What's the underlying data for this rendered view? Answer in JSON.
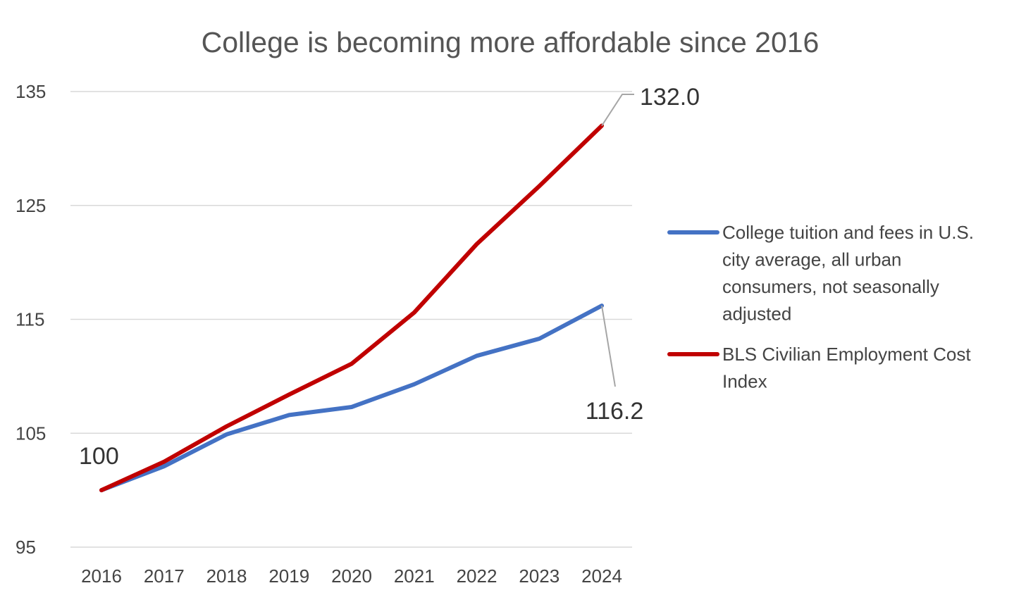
{
  "chart_data": {
    "type": "line",
    "title": "College is becoming more affordable since 2016",
    "xlabel": "",
    "ylabel": "",
    "categories": [
      "2016",
      "2017",
      "2018",
      "2019",
      "2020",
      "2021",
      "2022",
      "2023",
      "2024"
    ],
    "ylim": [
      95,
      135
    ],
    "yticks": [
      95,
      105,
      115,
      125,
      135
    ],
    "grid": true,
    "legend_position": "right",
    "series": [
      {
        "name": "College tuition and fees in U.S. city average, all urban consumers, not seasonally adjusted",
        "legend_lines": [
          "College tuition and fees in U.S.",
          "city average, all urban",
          "consumers, not seasonally",
          "adjusted"
        ],
        "color": "#4472C4",
        "values": [
          100.0,
          102.1,
          104.9,
          106.6,
          107.3,
          109.3,
          111.8,
          113.3,
          116.2
        ]
      },
      {
        "name": "BLS Civilian Employment Cost Index",
        "legend_lines": [
          "BLS Civilian Employment Cost",
          "Index"
        ],
        "color": "#C00000",
        "values": [
          100.0,
          102.5,
          105.6,
          108.4,
          111.1,
          115.6,
          121.6,
          126.7,
          132.0
        ]
      }
    ],
    "annotations": [
      {
        "text": "100",
        "series": 1,
        "index": 0
      },
      {
        "text": "132.0",
        "series": 1,
        "index": 8
      },
      {
        "text": "116.2",
        "series": 0,
        "index": 8
      }
    ]
  }
}
